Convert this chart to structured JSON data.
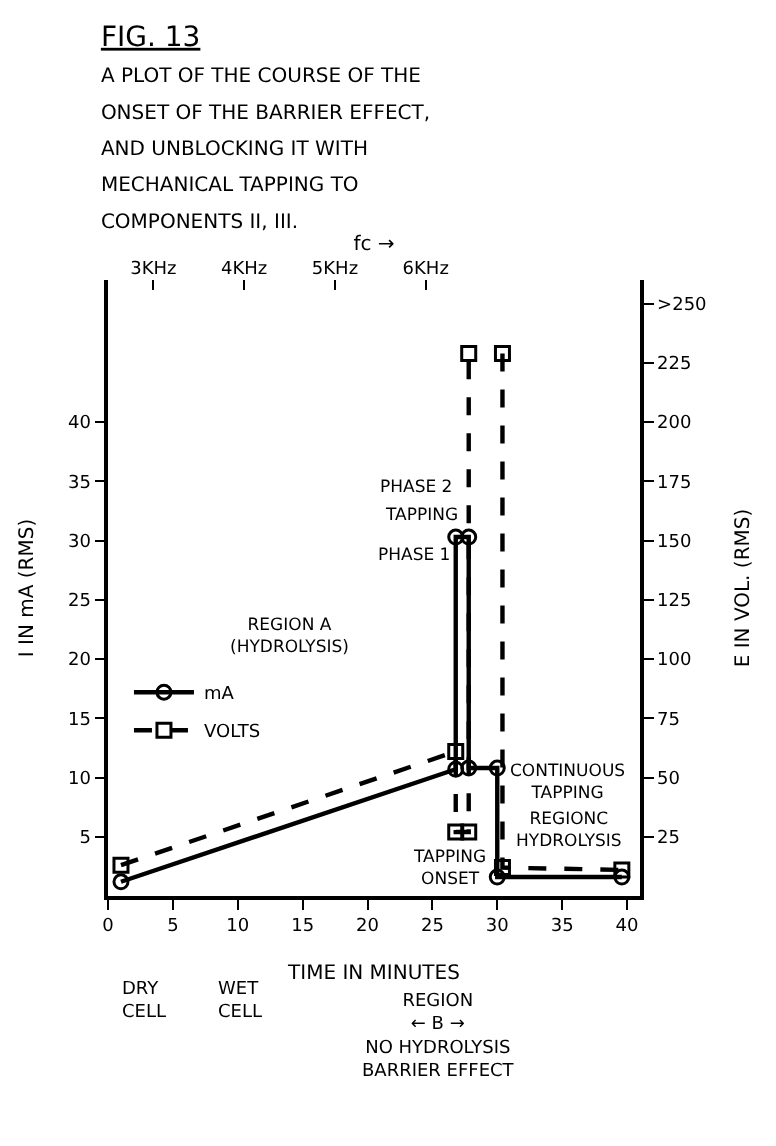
{
  "chart_data": {
    "type": "line",
    "title": "FIG. 13",
    "subtitle": "A PLOT OF THE COURSE OF THE\nONSET OF THE BARRIER EFFECT,\nAND UNBLOCKING IT WITH\nMECHANICAL TAPPING TO\nCOMPONENTS II, III.",
    "xlabel": "TIME IN MINUTES",
    "ylabel": "I IN mA (RMS)",
    "y2label": "E IN VOL. (RMS)",
    "x2label": "fc →",
    "series": [
      {
        "name": "mA",
        "color": "#000000",
        "marker": "circle",
        "line_style": "solid",
        "x": [
          1,
          26.8,
          26.8,
          27.8,
          27.8,
          30,
          30,
          39.6
        ],
        "values": [
          1.2,
          10.7,
          30.3,
          30.3,
          10.8,
          10.8,
          1.6,
          1.6
        ]
      },
      {
        "name": "VOLTS",
        "color": "#000000",
        "marker": "square",
        "line_style": "dashed",
        "axis": "y2",
        "x": [
          1,
          26.8,
          26.8,
          27.8,
          27.8,
          null,
          30.4,
          30.4,
          39.6
        ],
        "values": [
          13,
          61,
          27,
          27,
          229,
          null,
          229,
          12,
          11
        ]
      }
    ],
    "xlim": [
      0,
      41
    ],
    "xticks": [
      0,
      5,
      10,
      15,
      20,
      25,
      30,
      35,
      40
    ],
    "x2lim": [
      2.5,
      8.36
    ],
    "x2ticks": [
      {
        "value": 3,
        "label": "3KHz"
      },
      {
        "value": 4,
        "label": "4KHz"
      },
      {
        "value": 5,
        "label": "5KHz"
      },
      {
        "value": 6,
        "label": "6KHz"
      }
    ],
    "ylim": [
      0,
      52
    ],
    "yticks": [
      5,
      10,
      15,
      20,
      25,
      30,
      35,
      40
    ],
    "y2lim": [
      0,
      260
    ],
    "y2ticks": [
      25,
      50,
      75,
      100,
      125,
      150,
      175,
      200,
      225,
      {
        "value": 250,
        "label": ">250"
      }
    ],
    "annotations": [
      "REGION A\n(HYDROLYSIS)",
      "PHASE 2",
      "TAPPING",
      "PHASE 1",
      "TAPPING\nONSET",
      "CONTINUOUS\nTAPPING",
      "REGIONC\nHYDROLYSIS",
      "DRY\nCELL",
      "WET\nCELL",
      "REGION\n← B →\nNO HYDROLYSIS\nBARRIER EFFECT"
    ],
    "legend": "left"
  }
}
